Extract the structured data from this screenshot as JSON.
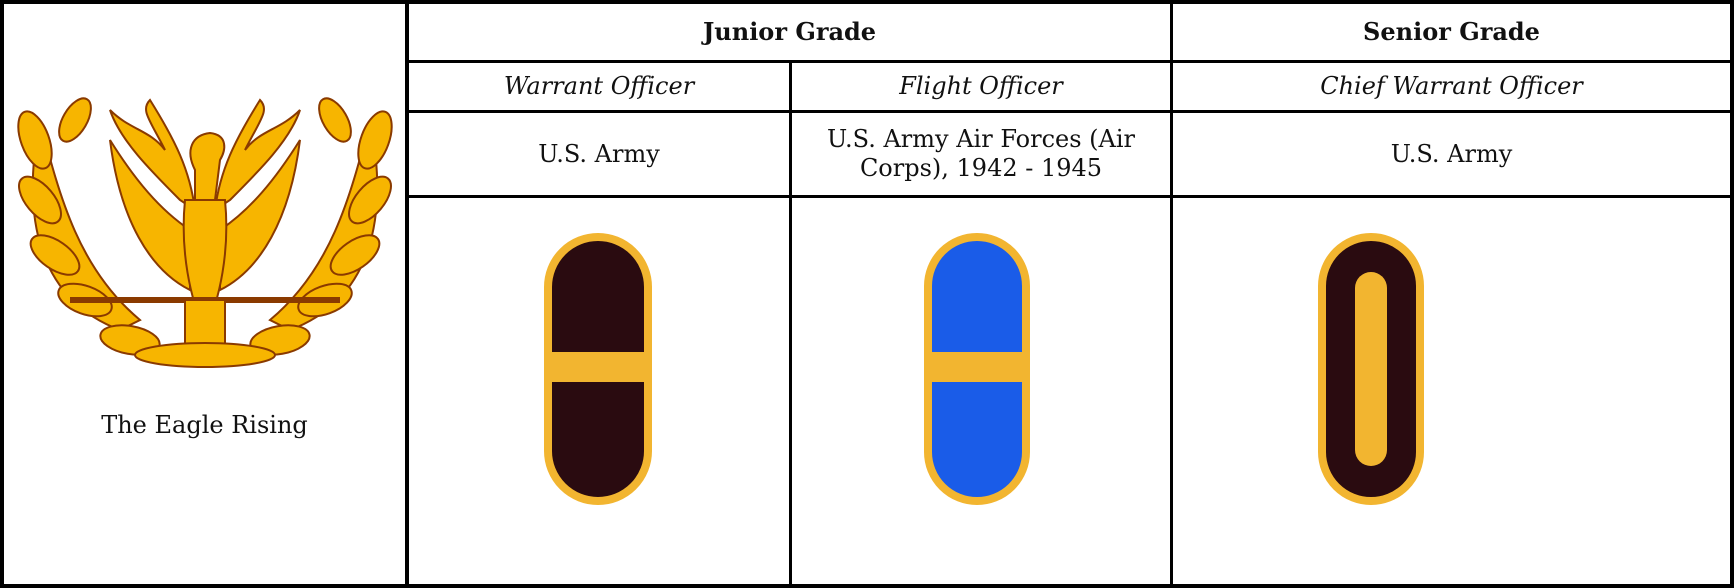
{
  "table": {
    "header": [
      "Junior Grade",
      "Senior Grade"
    ],
    "subheader": [
      "Warrant Officer",
      "Flight Officer",
      "Chief Warrant Officer"
    ],
    "branch": [
      "U.S. Army",
      "U.S. Army Air Forces (Air Corps), 1942 - 1945",
      "U.S. Army"
    ],
    "caption": "The Eagle Rising"
  }
}
